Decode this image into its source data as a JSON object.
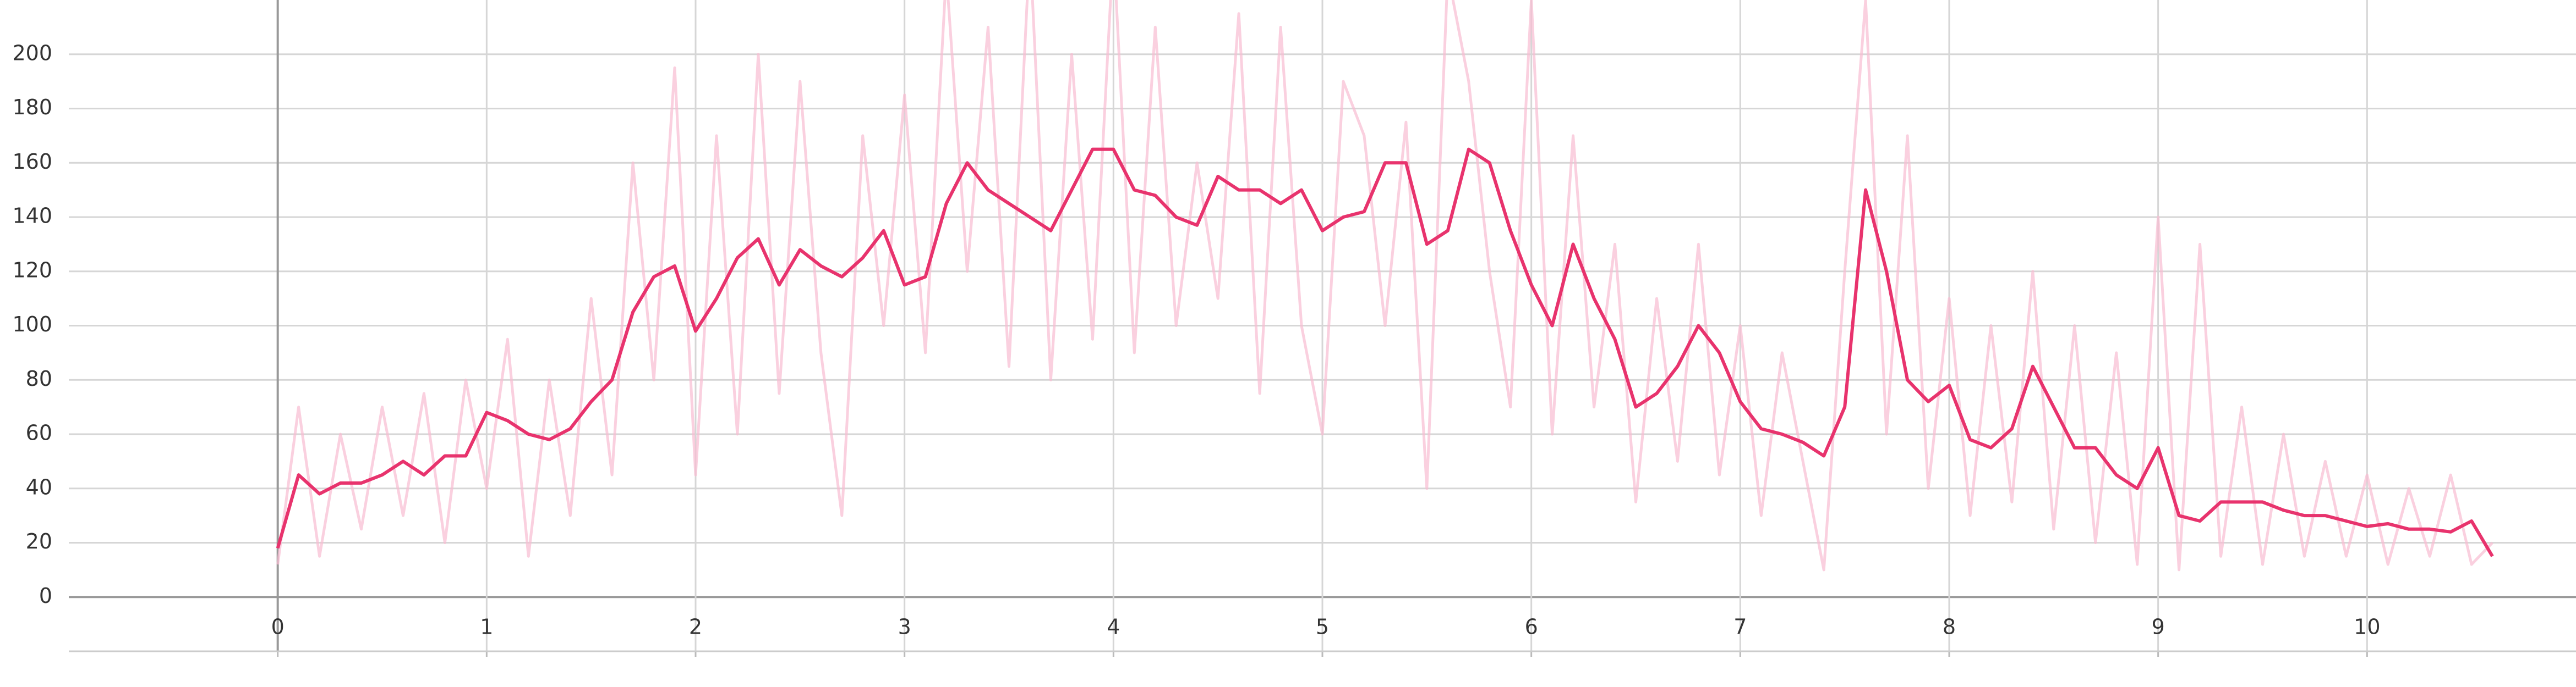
{
  "chart_data": {
    "type": "line",
    "x": [
      0,
      0.1,
      0.2,
      0.3,
      0.4,
      0.5,
      0.6,
      0.7,
      0.8,
      0.9,
      1,
      1.1,
      1.2,
      1.3,
      1.4,
      1.5,
      1.6,
      1.7,
      1.8,
      1.9,
      2,
      2.1,
      2.2,
      2.3,
      2.4,
      2.5,
      2.6,
      2.7,
      2.8,
      2.9,
      3,
      3.1,
      3.2,
      3.3,
      3.4,
      3.5,
      3.6,
      3.7,
      3.8,
      3.9,
      4,
      4.1,
      4.2,
      4.3,
      4.4,
      4.5,
      4.6,
      4.7,
      4.8,
      4.9,
      5,
      5.1,
      5.2,
      5.3,
      5.4,
      5.5,
      5.6,
      5.7,
      5.8,
      5.9,
      6,
      6.1,
      6.2,
      6.3,
      6.4,
      6.5,
      6.6,
      6.7,
      6.8,
      6.9,
      7,
      7.1,
      7.2,
      7.3,
      7.4,
      7.5,
      7.6,
      7.7,
      7.8,
      7.9,
      8,
      8.1,
      8.2,
      8.3,
      8.4,
      8.5,
      8.6,
      8.7,
      8.8,
      8.9,
      9,
      9.1,
      9.2,
      9.3,
      9.4,
      9.5,
      9.6,
      9.7,
      9.8,
      9.9,
      10,
      10.1,
      10.2,
      10.3,
      10.4,
      10.5,
      10.6
    ],
    "series": [
      {
        "color": "#f8bcd2",
        "values": [
          12,
          70,
          15,
          60,
          25,
          70,
          30,
          75,
          20,
          80,
          40,
          95,
          15,
          80,
          30,
          110,
          45,
          160,
          80,
          195,
          45,
          170,
          60,
          200,
          75,
          190,
          90,
          30,
          170,
          100,
          185,
          90,
          230,
          120,
          210,
          85,
          240,
          80,
          200,
          95,
          240,
          90,
          210,
          100,
          160,
          110,
          215,
          75,
          210,
          100,
          60,
          190,
          170,
          100,
          175,
          40,
          230,
          190,
          120,
          70,
          220,
          60,
          170,
          70,
          130,
          35,
          110,
          50,
          130,
          45,
          100,
          30,
          90,
          50,
          10,
          120,
          220,
          60,
          170,
          40,
          110,
          30,
          100,
          35,
          120,
          25,
          100,
          20,
          90,
          12,
          140,
          10,
          130,
          15,
          70,
          12,
          60,
          15,
          50,
          15,
          45,
          12,
          40,
          15,
          45,
          12,
          20
        ]
      },
      {
        "color": "#e8336d",
        "values": [
          18,
          45,
          38,
          42,
          42,
          45,
          50,
          45,
          52,
          52,
          68,
          65,
          60,
          58,
          62,
          72,
          80,
          105,
          118,
          122,
          98,
          110,
          125,
          132,
          115,
          128,
          122,
          118,
          125,
          135,
          115,
          118,
          145,
          160,
          150,
          145,
          140,
          135,
          150,
          165,
          165,
          150,
          148,
          140,
          137,
          155,
          150,
          150,
          145,
          150,
          135,
          140,
          142,
          160,
          160,
          130,
          135,
          165,
          160,
          135,
          115,
          100,
          130,
          110,
          95,
          70,
          75,
          85,
          100,
          90,
          72,
          62,
          60,
          57,
          52,
          70,
          150,
          120,
          80,
          72,
          78,
          58,
          55,
          62,
          85,
          70,
          55,
          55,
          45,
          40,
          55,
          30,
          28,
          35,
          35,
          35,
          32,
          30,
          30,
          28,
          26,
          27,
          25,
          25,
          24,
          28,
          15
        ]
      }
    ],
    "xlim": [
      -1,
      11
    ],
    "ylim": [
      -20,
      220
    ],
    "xticks": [
      0,
      1,
      2,
      3,
      4,
      5,
      6,
      7,
      8,
      9,
      10
    ],
    "yticks": [
      0,
      20,
      40,
      60,
      80,
      100,
      120,
      140,
      160,
      180,
      200
    ],
    "grid": true
  }
}
